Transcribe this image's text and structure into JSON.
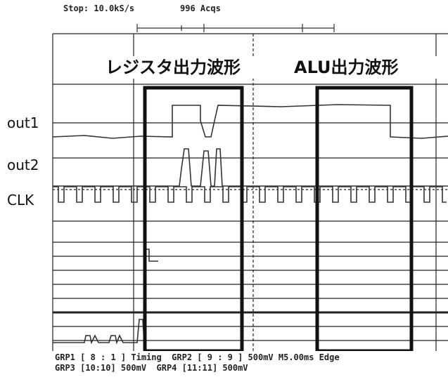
{
  "header": {
    "status": "Stop: 10.0kS/s",
    "acquisitions": "996 Acqs"
  },
  "labels": {
    "register": "レジスタ出力波形",
    "alu": "ALU出力波形"
  },
  "channels": [
    "out1",
    "out2",
    "CLK"
  ],
  "footer": [
    "GRP1 [ 8 : 1 ] Timing  GRP2 [ 9 : 9 ] 500mV M5.00ms Edge",
    "GRP3 [10:10] 500mV  GRP4 [11:11] 500mV"
  ]
}
